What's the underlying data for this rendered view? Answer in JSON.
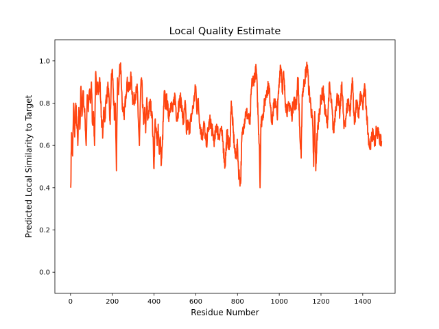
{
  "chart_data": {
    "type": "line",
    "title": "Local Quality Estimate",
    "xlabel": "Residue Number",
    "ylabel": "Predicted Local Similarity to Target",
    "xlim": [
      -75,
      1555
    ],
    "ylim": [
      -0.1,
      1.1
    ],
    "xticks": [
      0,
      200,
      400,
      600,
      800,
      1000,
      1200,
      1400
    ],
    "yticks": [
      0.0,
      0.2,
      0.4,
      0.6,
      0.8,
      1.0
    ],
    "xtick_labels": [
      "0",
      "200",
      "400",
      "600",
      "800",
      "1000",
      "1200",
      "1400"
    ],
    "ytick_labels": [
      "0.0",
      "0.2",
      "0.4",
      "0.6",
      "0.8",
      "1.0"
    ],
    "grid": false,
    "series": [
      {
        "color": "#ff4411",
        "x_start": 1,
        "x_end": 1490,
        "anchors": [
          [
            1,
            0.4
          ],
          [
            5,
            0.66
          ],
          [
            10,
            0.55
          ],
          [
            15,
            0.8
          ],
          [
            20,
            0.64
          ],
          [
            25,
            0.8
          ],
          [
            30,
            0.7
          ],
          [
            35,
            0.6
          ],
          [
            40,
            0.78
          ],
          [
            45,
            0.68
          ],
          [
            50,
            0.88
          ],
          [
            55,
            0.74
          ],
          [
            60,
            0.86
          ],
          [
            65,
            0.78
          ],
          [
            70,
            0.72
          ],
          [
            75,
            0.6
          ],
          [
            80,
            0.84
          ],
          [
            85,
            0.76
          ],
          [
            90,
            0.86
          ],
          [
            95,
            0.8
          ],
          [
            100,
            0.9
          ],
          [
            105,
            0.7
          ],
          [
            110,
            0.76
          ],
          [
            115,
            0.6
          ],
          [
            120,
            0.94
          ],
          [
            125,
            0.84
          ],
          [
            130,
            0.9
          ],
          [
            135,
            0.86
          ],
          [
            140,
            0.92
          ],
          [
            145,
            0.8
          ],
          [
            150,
            0.7
          ],
          [
            155,
            0.66
          ],
          [
            160,
            0.78
          ],
          [
            165,
            0.72
          ],
          [
            170,
            0.82
          ],
          [
            175,
            0.84
          ],
          [
            180,
            0.88
          ],
          [
            190,
            0.7
          ],
          [
            195,
            0.9
          ],
          [
            200,
            0.96
          ],
          [
            205,
            0.86
          ],
          [
            210,
            0.72
          ],
          [
            215,
            0.8
          ],
          [
            220,
            0.48
          ],
          [
            225,
            0.92
          ],
          [
            230,
            0.84
          ],
          [
            235,
            0.96
          ],
          [
            240,
            0.99
          ],
          [
            245,
            0.86
          ],
          [
            250,
            0.76
          ],
          [
            255,
            0.74
          ],
          [
            260,
            0.78
          ],
          [
            265,
            0.84
          ],
          [
            270,
            0.9
          ],
          [
            280,
            0.86
          ],
          [
            290,
            0.92
          ],
          [
            300,
            0.8
          ],
          [
            310,
            0.84
          ],
          [
            320,
            0.86
          ],
          [
            325,
            0.72
          ],
          [
            330,
            0.6
          ],
          [
            335,
            0.82
          ],
          [
            340,
            0.92
          ],
          [
            350,
            0.7
          ],
          [
            355,
            0.78
          ],
          [
            360,
            0.66
          ],
          [
            365,
            0.82
          ],
          [
            370,
            0.72
          ],
          [
            380,
            0.8
          ],
          [
            390,
            0.76
          ],
          [
            395,
            0.64
          ],
          [
            400,
            0.49
          ],
          [
            405,
            0.72
          ],
          [
            410,
            0.66
          ],
          [
            415,
            0.6
          ],
          [
            420,
            0.7
          ],
          [
            425,
            0.56
          ],
          [
            430,
            0.64
          ],
          [
            435,
            0.51
          ],
          [
            440,
            0.6
          ],
          [
            445,
            0.74
          ],
          [
            450,
            0.86
          ],
          [
            455,
            0.78
          ],
          [
            460,
            0.82
          ],
          [
            470,
            0.74
          ],
          [
            480,
            0.8
          ],
          [
            490,
            0.76
          ],
          [
            500,
            0.84
          ],
          [
            510,
            0.72
          ],
          [
            520,
            0.8
          ],
          [
            530,
            0.82
          ],
          [
            540,
            0.7
          ],
          [
            550,
            0.8
          ],
          [
            555,
            0.66
          ],
          [
            560,
            0.7
          ],
          [
            570,
            0.68
          ],
          [
            580,
            0.74
          ],
          [
            590,
            0.8
          ],
          [
            600,
            0.88
          ],
          [
            605,
            0.76
          ],
          [
            610,
            0.82
          ],
          [
            620,
            0.7
          ],
          [
            630,
            0.64
          ],
          [
            640,
            0.7
          ],
          [
            650,
            0.6
          ],
          [
            660,
            0.68
          ],
          [
            670,
            0.72
          ],
          [
            680,
            0.66
          ],
          [
            690,
            0.62
          ],
          [
            700,
            0.7
          ],
          [
            710,
            0.64
          ],
          [
            720,
            0.68
          ],
          [
            730,
            0.62
          ],
          [
            740,
            0.5
          ],
          [
            750,
            0.66
          ],
          [
            760,
            0.58
          ],
          [
            765,
            0.64
          ],
          [
            770,
            0.81
          ],
          [
            780,
            0.66
          ],
          [
            790,
            0.54
          ],
          [
            800,
            0.6
          ],
          [
            805,
            0.48
          ],
          [
            810,
            0.45
          ],
          [
            815,
            0.42
          ],
          [
            820,
            0.62
          ],
          [
            830,
            0.7
          ],
          [
            840,
            0.76
          ],
          [
            850,
            0.74
          ],
          [
            860,
            0.7
          ],
          [
            865,
            0.84
          ],
          [
            870,
            0.9
          ],
          [
            880,
            0.92
          ],
          [
            885,
            0.94
          ],
          [
            890,
            0.96
          ],
          [
            895,
            0.84
          ],
          [
            900,
            0.7
          ],
          [
            905,
            0.6
          ],
          [
            908,
            0.4
          ],
          [
            912,
            0.7
          ],
          [
            920,
            0.74
          ],
          [
            930,
            0.8
          ],
          [
            940,
            0.86
          ],
          [
            950,
            0.88
          ],
          [
            960,
            0.78
          ],
          [
            965,
            0.7
          ],
          [
            970,
            0.76
          ],
          [
            980,
            0.82
          ],
          [
            990,
            0.74
          ],
          [
            1000,
            0.9
          ],
          [
            1005,
            0.98
          ],
          [
            1010,
            0.96
          ],
          [
            1015,
            0.86
          ],
          [
            1020,
            0.94
          ],
          [
            1030,
            0.8
          ],
          [
            1040,
            0.76
          ],
          [
            1050,
            0.8
          ],
          [
            1060,
            0.74
          ],
          [
            1070,
            0.82
          ],
          [
            1080,
            0.78
          ],
          [
            1090,
            0.92
          ],
          [
            1100,
            0.62
          ],
          [
            1105,
            0.54
          ],
          [
            1110,
            0.84
          ],
          [
            1120,
            0.9
          ],
          [
            1130,
            0.96
          ],
          [
            1135,
            0.98
          ],
          [
            1140,
            0.88
          ],
          [
            1150,
            0.8
          ],
          [
            1160,
            0.7
          ],
          [
            1165,
            0.5
          ],
          [
            1170,
            0.76
          ],
          [
            1175,
            0.48
          ],
          [
            1180,
            0.62
          ],
          [
            1190,
            0.74
          ],
          [
            1200,
            0.82
          ],
          [
            1210,
            0.86
          ],
          [
            1220,
            0.76
          ],
          [
            1230,
            0.7
          ],
          [
            1240,
            0.88
          ],
          [
            1250,
            0.8
          ],
          [
            1260,
            0.66
          ],
          [
            1270,
            0.78
          ],
          [
            1280,
            0.84
          ],
          [
            1290,
            0.74
          ],
          [
            1300,
            0.9
          ],
          [
            1310,
            0.68
          ],
          [
            1320,
            0.74
          ],
          [
            1330,
            0.82
          ],
          [
            1340,
            0.76
          ],
          [
            1350,
            0.92
          ],
          [
            1360,
            0.7
          ],
          [
            1370,
            0.8
          ],
          [
            1380,
            0.74
          ],
          [
            1390,
            0.84
          ],
          [
            1400,
            0.78
          ],
          [
            1410,
            0.88
          ],
          [
            1420,
            0.74
          ],
          [
            1425,
            0.66
          ],
          [
            1430,
            0.62
          ],
          [
            1435,
            0.58
          ],
          [
            1440,
            0.62
          ],
          [
            1450,
            0.66
          ],
          [
            1460,
            0.6
          ],
          [
            1465,
            0.68
          ],
          [
            1470,
            0.64
          ],
          [
            1475,
            0.68
          ],
          [
            1480,
            0.62
          ],
          [
            1490,
            0.62
          ]
        ]
      }
    ]
  }
}
